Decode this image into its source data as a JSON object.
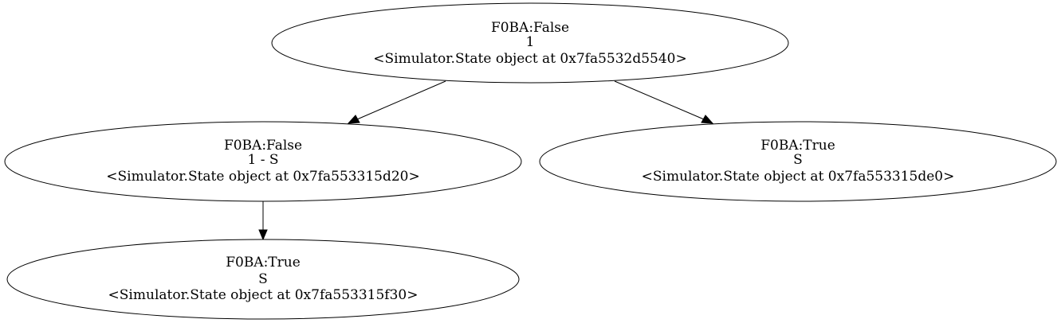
{
  "graph": {
    "nodes": [
      {
        "id": "root",
        "lines": [
          "F0BA:False",
          "1",
          "<Simulator.State object at 0x7fa5532d5540>"
        ]
      },
      {
        "id": "left",
        "lines": [
          "F0BA:False",
          "1 - S",
          "<Simulator.State object at 0x7fa553315d20>"
        ]
      },
      {
        "id": "right",
        "lines": [
          "F0BA:True",
          "S",
          "<Simulator.State object at 0x7fa553315de0>"
        ]
      },
      {
        "id": "leaf",
        "lines": [
          "F0BA:True",
          "S",
          "<Simulator.State object at 0x7fa553315f30>"
        ]
      }
    ],
    "edges": [
      {
        "from": "root",
        "to": "left"
      },
      {
        "from": "root",
        "to": "right"
      },
      {
        "from": "left",
        "to": "leaf"
      }
    ]
  }
}
